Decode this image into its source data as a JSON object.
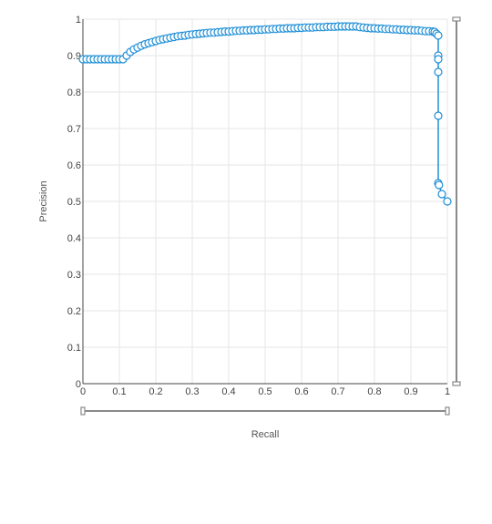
{
  "chart_data": {
    "type": "line",
    "title": "",
    "xlabel": "Recall",
    "ylabel": "Precision",
    "xlim": [
      0,
      1
    ],
    "ylim": [
      0,
      1
    ],
    "x_ticks": [
      "0",
      "0.1",
      "0.2",
      "0.3",
      "0.4",
      "0.5",
      "0.6",
      "0.7",
      "0.8",
      "0.9",
      "1"
    ],
    "y_ticks": [
      "0",
      "0.1",
      "0.2",
      "0.3",
      "0.4",
      "0.5",
      "0.6",
      "0.7",
      "0.8",
      "0.9",
      "1"
    ],
    "grid": true,
    "legend": "none",
    "colors": {
      "series": "#1f8fd6",
      "marker_fill": "#ffffff",
      "grid": "#e6e6e6",
      "axis": "#444444",
      "slider": "#8a8a8a"
    },
    "series": [
      {
        "x": [
          0.0,
          0.01,
          0.02,
          0.03,
          0.04,
          0.05,
          0.06,
          0.07,
          0.08,
          0.09,
          0.1,
          0.11,
          0.12,
          0.13,
          0.14,
          0.15,
          0.16,
          0.17,
          0.18,
          0.19,
          0.2,
          0.21,
          0.22,
          0.23,
          0.24,
          0.25,
          0.26,
          0.27,
          0.28,
          0.29,
          0.3,
          0.31,
          0.32,
          0.33,
          0.34,
          0.35,
          0.36,
          0.37,
          0.38,
          0.39,
          0.4,
          0.41,
          0.42,
          0.43,
          0.44,
          0.45,
          0.46,
          0.47,
          0.48,
          0.49,
          0.5,
          0.51,
          0.52,
          0.53,
          0.54,
          0.55,
          0.56,
          0.57,
          0.58,
          0.59,
          0.6,
          0.61,
          0.62,
          0.63,
          0.64,
          0.65,
          0.66,
          0.67,
          0.68,
          0.69,
          0.7,
          0.71,
          0.72,
          0.73,
          0.74,
          0.75,
          0.76,
          0.77,
          0.78,
          0.79,
          0.8,
          0.81,
          0.82,
          0.83,
          0.84,
          0.85,
          0.86,
          0.87,
          0.88,
          0.89,
          0.9,
          0.91,
          0.92,
          0.93,
          0.94,
          0.95,
          0.96,
          0.965,
          0.97,
          0.975,
          0.975,
          0.975,
          0.975,
          0.975,
          0.975,
          0.977,
          0.985,
          1.0
        ],
        "y": [
          0.89,
          0.89,
          0.89,
          0.89,
          0.89,
          0.89,
          0.89,
          0.89,
          0.89,
          0.89,
          0.89,
          0.89,
          0.9,
          0.91,
          0.917,
          0.922,
          0.927,
          0.931,
          0.934,
          0.937,
          0.94,
          0.943,
          0.945,
          0.947,
          0.949,
          0.951,
          0.953,
          0.954,
          0.955,
          0.957,
          0.958,
          0.959,
          0.96,
          0.961,
          0.962,
          0.963,
          0.963,
          0.964,
          0.965,
          0.966,
          0.966,
          0.967,
          0.968,
          0.968,
          0.969,
          0.969,
          0.97,
          0.97,
          0.971,
          0.971,
          0.972,
          0.972,
          0.973,
          0.973,
          0.974,
          0.974,
          0.975,
          0.975,
          0.975,
          0.976,
          0.976,
          0.977,
          0.977,
          0.977,
          0.978,
          0.978,
          0.978,
          0.979,
          0.979,
          0.979,
          0.98,
          0.98,
          0.98,
          0.98,
          0.98,
          0.98,
          0.978,
          0.977,
          0.976,
          0.975,
          0.975,
          0.974,
          0.974,
          0.973,
          0.973,
          0.972,
          0.972,
          0.971,
          0.971,
          0.97,
          0.97,
          0.969,
          0.969,
          0.968,
          0.967,
          0.967,
          0.966,
          0.965,
          0.96,
          0.955,
          0.9,
          0.89,
          0.855,
          0.735,
          0.55,
          0.545,
          0.52,
          0.5
        ]
      }
    ]
  }
}
